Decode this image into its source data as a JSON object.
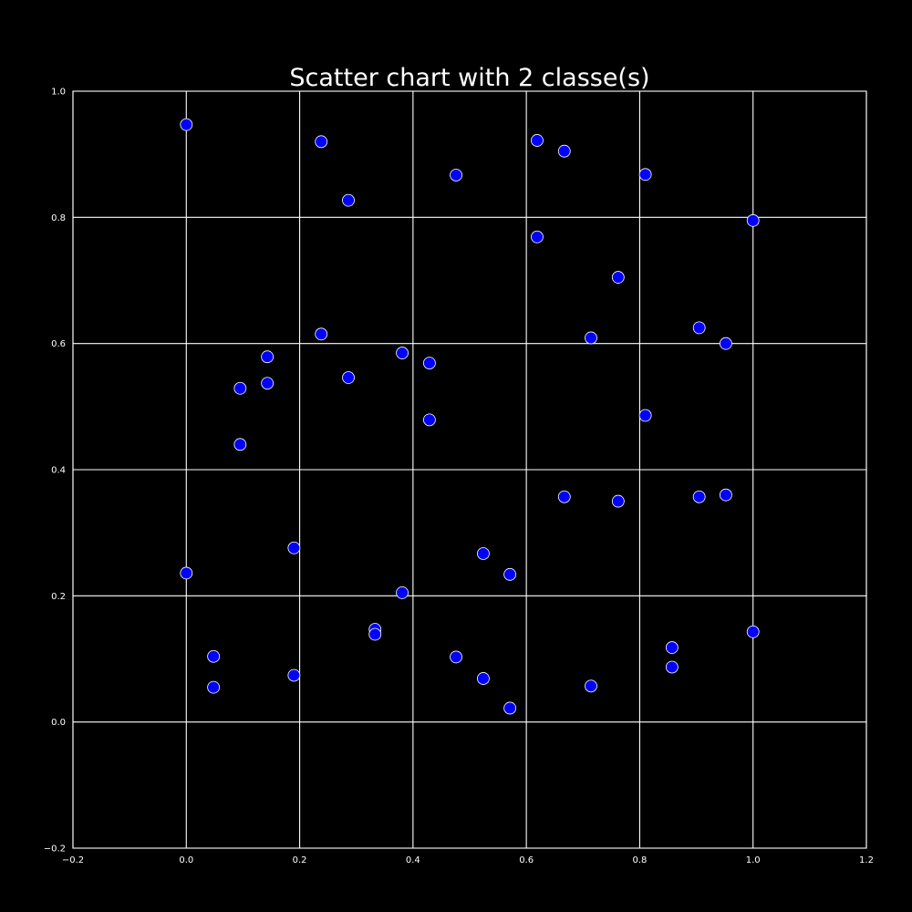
{
  "chart_data": {
    "type": "scatter",
    "title": "Scatter chart with 2 classe(s)",
    "xlabel": "",
    "ylabel": "",
    "xlim": [
      -0.2,
      1.2
    ],
    "ylim": [
      -0.2,
      1.0
    ],
    "x_ticks": [
      -0.2,
      0.0,
      0.2,
      0.4,
      0.6,
      0.8,
      1.0,
      1.2
    ],
    "y_ticks": [
      -0.2,
      0.0,
      0.2,
      0.4,
      0.6,
      0.8,
      1.0
    ],
    "x_tick_labels": [
      "−0.2",
      "0.0",
      "0.2",
      "0.4",
      "0.6",
      "0.8",
      "1.0",
      "1.2"
    ],
    "y_tick_labels": [
      "−0.2",
      "0.0",
      "0.2",
      "0.4",
      "0.6",
      "0.8",
      "1.0"
    ],
    "grid": true,
    "background_color": "#000000",
    "series": [
      {
        "color": "#0000ff",
        "points": [
          [
            0.0,
            0.947
          ],
          [
            0.238,
            0.92
          ],
          [
            0.286,
            0.827
          ],
          [
            0.476,
            0.867
          ],
          [
            0.619,
            0.922
          ],
          [
            0.667,
            0.905
          ],
          [
            0.81,
            0.868
          ],
          [
            1.0,
            0.795
          ],
          [
            0.619,
            0.769
          ],
          [
            0.762,
            0.705
          ],
          [
            0.714,
            0.609
          ],
          [
            0.905,
            0.625
          ],
          [
            0.952,
            0.6
          ],
          [
            0.238,
            0.615
          ],
          [
            0.143,
            0.579
          ],
          [
            0.095,
            0.529
          ],
          [
            0.143,
            0.537
          ],
          [
            0.095,
            0.44
          ],
          [
            0.286,
            0.546
          ],
          [
            0.381,
            0.585
          ],
          [
            0.429,
            0.569
          ],
          [
            0.429,
            0.479
          ],
          [
            0.81,
            0.486
          ],
          [
            0.667,
            0.357
          ],
          [
            0.762,
            0.35
          ],
          [
            0.905,
            0.357
          ],
          [
            0.952,
            0.36
          ],
          [
            0.0,
            0.236
          ],
          [
            0.19,
            0.276
          ],
          [
            0.381,
            0.205
          ],
          [
            0.524,
            0.267
          ],
          [
            0.571,
            0.234
          ],
          [
            0.048,
            0.104
          ],
          [
            0.048,
            0.055
          ],
          [
            0.19,
            0.074
          ],
          [
            0.333,
            0.147
          ],
          [
            0.333,
            0.139
          ],
          [
            0.476,
            0.103
          ],
          [
            0.524,
            0.069
          ],
          [
            0.571,
            0.022
          ],
          [
            0.714,
            0.057
          ],
          [
            0.857,
            0.118
          ],
          [
            0.857,
            0.087
          ],
          [
            1.0,
            0.143
          ]
        ]
      }
    ]
  }
}
